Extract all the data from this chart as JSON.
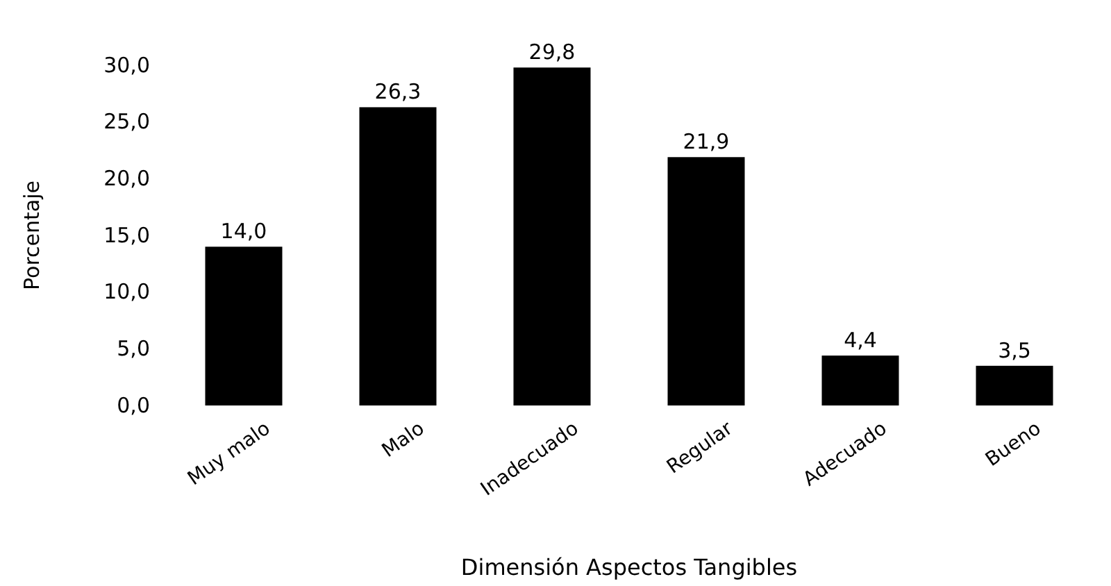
{
  "chart_data": {
    "type": "bar",
    "xlabel": "Dimensión Aspectos Tangibles",
    "ylabel": "Porcentaje",
    "categories": [
      "Muy malo",
      "Malo",
      "Inadecuado",
      "Regular",
      "Adecuado",
      "Bueno"
    ],
    "values": [
      14.0,
      26.3,
      29.8,
      21.9,
      4.4,
      3.5
    ],
    "value_labels": [
      "14,0",
      "26,3",
      "29,8",
      "21,9",
      "4,4",
      "3,5"
    ],
    "color": "#000000",
    "ylim": [
      0,
      30
    ],
    "yticks": [
      {
        "value": 0,
        "label": "0,0"
      },
      {
        "value": 5,
        "label": "5,0"
      },
      {
        "value": 10,
        "label": "10,0"
      },
      {
        "value": 15,
        "label": "15,0"
      },
      {
        "value": 20,
        "label": "20,0"
      },
      {
        "value": 25,
        "label": "25,0"
      },
      {
        "value": 30,
        "label": "30,0"
      }
    ],
    "grid": false
  }
}
